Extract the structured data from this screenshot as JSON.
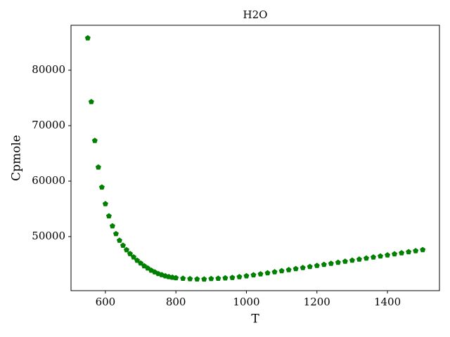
{
  "chart_data": {
    "type": "scatter",
    "title": "H2O",
    "xlabel": "T",
    "ylabel": "Cpmole",
    "marker": "pentagon",
    "color": "#008000",
    "grid": false,
    "xlim": [
      502.5,
      1547.5
    ],
    "ylim": [
      40250,
      88100
    ],
    "xticks": [
      600,
      800,
      1000,
      1200,
      1400
    ],
    "yticks": [
      50000,
      60000,
      70000,
      80000
    ],
    "x": [
      550,
      560,
      570,
      580,
      590,
      600,
      610,
      620,
      630,
      640,
      650,
      660,
      670,
      680,
      690,
      700,
      710,
      720,
      730,
      740,
      750,
      760,
      770,
      780,
      790,
      800,
      820,
      840,
      860,
      880,
      900,
      920,
      940,
      960,
      980,
      1000,
      1020,
      1040,
      1060,
      1080,
      1100,
      1120,
      1140,
      1160,
      1180,
      1200,
      1220,
      1240,
      1260,
      1280,
      1300,
      1320,
      1340,
      1360,
      1380,
      1400,
      1420,
      1440,
      1460,
      1480,
      1500
    ],
    "values": [
      85800,
      74300,
      67300,
      62500,
      58900,
      55900,
      53700,
      51900,
      50500,
      49300,
      48400,
      47600,
      46900,
      46300,
      45700,
      45200,
      44700,
      44300,
      43900,
      43600,
      43300,
      43100,
      42900,
      42750,
      42650,
      42550,
      42450,
      42380,
      42330,
      42310,
      42400,
      42450,
      42520,
      42600,
      42740,
      42900,
      43070,
      43250,
      43430,
      43620,
      43810,
      44000,
      44190,
      44380,
      44570,
      44760,
      44950,
      45140,
      45330,
      45520,
      45710,
      45900,
      46090,
      46280,
      46470,
      46660,
      46850,
      47040,
      47230,
      47420,
      47610
    ]
  }
}
